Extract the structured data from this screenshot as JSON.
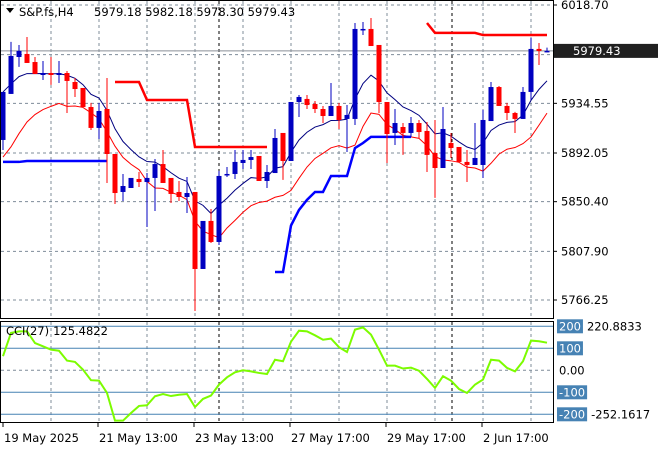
{
  "header": {
    "symbol": "S&P.fs,H4",
    "ohlc": "5979.18 5982.18 5978.30 5979.43",
    "menu_icon": "triangle-down-icon"
  },
  "colors": {
    "bull": "#0000c0",
    "bear": "#ff0000",
    "ma_fast": "#000080",
    "ma_slow": "#ff0000",
    "support": "#0000ff",
    "resistance": "#ff0000",
    "cci": "#7cfc00",
    "cci_levels": "#4682b4",
    "grid": "#7f8c99",
    "price_box": "#202020"
  },
  "chart_data": [
    {
      "type": "candlestick",
      "title": "S&P.fs,H4",
      "ylim": [
        5766.25,
        6018.7
      ],
      "y_ticks": [
        "6018.70",
        "5976.25",
        "5934.55",
        "5892.05",
        "5850.40",
        "5807.90",
        "5766.25"
      ],
      "y_tick_labels_shown": [
        "6018.70",
        "5934.55",
        "5892.05",
        "5850.40",
        "5807.90",
        "5766.25"
      ],
      "current_price": "5979.43",
      "x_tick_labels": [
        "19 May 2025",
        "21 May 13:00",
        "23 May 13:00",
        "27 May 17:00",
        "29 May 17:00",
        "2 Jun 17:00"
      ],
      "grid": true,
      "ohlc": [
        [
          5903.2,
          5944.3,
          5894.6,
          5944.3
        ],
        [
          5942.6,
          5987.1,
          5942.6,
          5975.1
        ],
        [
          5974.2,
          5984.5,
          5965.7,
          5979.4
        ],
        [
          5976.8,
          5991.3,
          5969.1,
          5969.1
        ],
        [
          5969.9,
          5974.2,
          5959.7,
          5959.7
        ],
        [
          5958.8,
          5970.8,
          5954.5,
          5960.5
        ],
        [
          5960.5,
          5974.2,
          5950.3,
          5958.8
        ],
        [
          5958.8,
          5970.8,
          5952.0,
          5960.5
        ],
        [
          5960.5,
          5962.2,
          5926.3,
          5953.7
        ],
        [
          5952.8,
          5956.2,
          5940.0,
          5946.8
        ],
        [
          5947.7,
          5947.7,
          5931.4,
          5931.4
        ],
        [
          5931.4,
          5934.9,
          5911.7,
          5913.5
        ],
        [
          5913.5,
          5934.9,
          5904.0,
          5928.0
        ],
        [
          5929.7,
          5956.2,
          5866.4,
          5891.2
        ],
        [
          5891.2,
          5891.2,
          5848.4,
          5857.8
        ],
        [
          5858.7,
          5874.1,
          5851.0,
          5863.8
        ],
        [
          5862.1,
          5870.7,
          5862.1,
          5870.7
        ],
        [
          5869.8,
          5875.8,
          5863.0,
          5867.2
        ],
        [
          5867.2,
          5874.9,
          5828.7,
          5870.7
        ],
        [
          5870.7,
          5886.9,
          5842.4,
          5882.6
        ],
        [
          5882.6,
          5894.6,
          5866.4,
          5866.4
        ],
        [
          5870.7,
          5870.7,
          5849.3,
          5857.0
        ],
        [
          5858.7,
          5868.1,
          5851.0,
          5854.4
        ],
        [
          5854.4,
          5871.5,
          5840.7,
          5857.8
        ],
        [
          5858.7,
          5858.7,
          5756.8,
          5792.8
        ],
        [
          5792.8,
          5833.9,
          5792.8,
          5833.9
        ],
        [
          5833.9,
          5844.1,
          5815.0,
          5815.9
        ],
        [
          5815.9,
          5876.7,
          5813.3,
          5872.4
        ],
        [
          5873.2,
          5880.1,
          5871.5,
          5874.1
        ],
        [
          5874.1,
          5894.6,
          5869.8,
          5884.4
        ],
        [
          5883.5,
          5894.6,
          5878.4,
          5886.1
        ],
        [
          5886.1,
          5894.6,
          5878.4,
          5888.6
        ],
        [
          5889.5,
          5889.5,
          5868.1,
          5868.1
        ],
        [
          5868.1,
          5881.8,
          5862.1,
          5875.8
        ],
        [
          5874.9,
          5912.6,
          5874.9,
          5904.9
        ],
        [
          5909.2,
          5909.2,
          5869.0,
          5885.2
        ],
        [
          5885.2,
          5935.7,
          5885.2,
          5935.7
        ],
        [
          5935.7,
          5941.7,
          5922.9,
          5940.0
        ],
        [
          5938.3,
          5941.7,
          5929.7,
          5933.1
        ],
        [
          5934.0,
          5936.6,
          5926.3,
          5929.7
        ],
        [
          5929.7,
          5932.3,
          5917.7,
          5923.7
        ],
        [
          5923.7,
          5952.0,
          5923.7,
          5932.3
        ],
        [
          5932.3,
          5934.9,
          5912.6,
          5920.3
        ],
        [
          5921.2,
          5933.1,
          5892.9,
          5924.6
        ],
        [
          5921.2,
          6003.3,
          5916.0,
          5998.2
        ],
        [
          5997.3,
          6004.2,
          5993.0,
          5998.2
        ],
        [
          5998.2,
          6007.6,
          5983.6,
          5983.6
        ],
        [
          5984.5,
          5984.5,
          5926.3,
          5935.7
        ],
        [
          5935.7,
          5935.7,
          5883.5,
          5908.3
        ],
        [
          5909.2,
          5929.7,
          5898.9,
          5917.7
        ],
        [
          5914.3,
          5917.7,
          5890.4,
          5909.2
        ],
        [
          5909.2,
          5922.9,
          5905.8,
          5917.7
        ],
        [
          5917.7,
          5920.3,
          5904.9,
          5910.0
        ],
        [
          5910.9,
          5918.6,
          5875.8,
          5890.4
        ],
        [
          5892.1,
          5920.3,
          5853.6,
          5879.2
        ],
        [
          5879.2,
          5931.4,
          5879.2,
          5912.6
        ],
        [
          5900.6,
          5909.2,
          5887.8,
          5896.3
        ],
        [
          5897.2,
          5897.2,
          5884.4,
          5884.4
        ],
        [
          5884.4,
          5894.6,
          5867.2,
          5881.8
        ],
        [
          5881.8,
          5917.7,
          5881.8,
          5887.8
        ],
        [
          5881.8,
          5928.9,
          5870.7,
          5920.3
        ],
        [
          5919.4,
          5952.8,
          5919.4,
          5948.5
        ],
        [
          5948.5,
          5949.4,
          5932.3,
          5932.3
        ],
        [
          5932.3,
          5934.9,
          5920.3,
          5926.3
        ],
        [
          5926.3,
          5927.2,
          5909.2,
          5921.2
        ],
        [
          5921.2,
          5948.5,
          5921.2,
          5944.3
        ],
        [
          5944.3,
          5990.5,
          5937.4,
          5981.1
        ],
        [
          5981.1,
          5986.2,
          5967.4,
          5979.4
        ],
        [
          5979.18,
          5982.18,
          5978.3,
          5979.43
        ]
      ],
      "support_line": [
        5884.4,
        5884.4,
        5884.4,
        5885.2,
        5885.2,
        5885.2,
        5885.2,
        5885.2,
        5885.2,
        5885.2,
        5885.2,
        5885.2,
        5885.2,
        5885.2,
        null,
        null,
        null,
        null,
        null,
        null,
        null,
        null,
        null,
        null,
        null,
        null,
        null,
        null,
        null,
        null,
        null,
        null,
        null,
        null,
        5790.2,
        5790.2,
        5830.0,
        5843.3,
        5852.0,
        5858.7,
        5858.7,
        5872.4,
        5872.4,
        5872.4,
        5896.3,
        5900.6,
        5905.8,
        5905.8,
        5905.8,
        5905.8,
        5905.8,
        5905.8,
        null,
        null,
        null,
        null,
        null,
        null,
        null,
        null,
        null,
        null,
        null,
        null,
        null,
        null,
        null,
        null,
        null
      ],
      "resistance_line": [
        null,
        null,
        null,
        null,
        null,
        null,
        null,
        null,
        null,
        null,
        null,
        null,
        null,
        null,
        5952.8,
        5952.8,
        5952.8,
        5952.8,
        5937.4,
        5937.4,
        5937.4,
        5937.4,
        5937.4,
        5937.4,
        5897.2,
        5897.2,
        5897.2,
        5897.2,
        5897.2,
        5897.2,
        5897.2,
        5897.2,
        5897.2,
        5897.2,
        null,
        null,
        null,
        null,
        null,
        null,
        null,
        null,
        null,
        null,
        null,
        null,
        null,
        null,
        null,
        null,
        null,
        null,
        null,
        6003.3,
        5994.8,
        5994.8,
        5994.8,
        5994.8,
        5994.8,
        5994.8,
        5993.0,
        5993.0,
        5993.0,
        5993.0,
        5993.0,
        5993.0,
        5993.0,
        5993.0,
        5993.0
      ]
    },
    {
      "type": "line",
      "title": "CCI(27) 125.4822",
      "indicator_label": "CCI(27)",
      "indicator_value": "125.4822",
      "ylim": [
        -252.1617,
        220.8833
      ],
      "max_label": "220.8833",
      "min_label": "-252.1617",
      "levels": [
        "200",
        "100",
        "0.00",
        "-100",
        "-200"
      ],
      "level_values": [
        200,
        100,
        0,
        -100,
        -200
      ],
      "values": [
        64,
        170,
        177,
        177,
        124,
        109,
        94,
        89,
        44,
        38,
        3,
        -45,
        -47,
        -103,
        -229,
        -229,
        -194,
        -162,
        -159,
        -118,
        -108,
        -117,
        -111,
        -108,
        -167,
        -130,
        -115,
        -65,
        -32,
        -9,
        0,
        -5,
        -12,
        -17,
        48,
        41,
        130,
        180,
        177,
        159,
        139,
        144,
        105,
        83,
        185,
        195,
        162,
        94,
        21,
        21,
        8,
        12,
        -2,
        -39,
        -80,
        -27,
        -47,
        -85,
        -103,
        -65,
        -42,
        48,
        44,
        11,
        -5,
        41,
        135,
        132,
        125.48
      ]
    }
  ]
}
